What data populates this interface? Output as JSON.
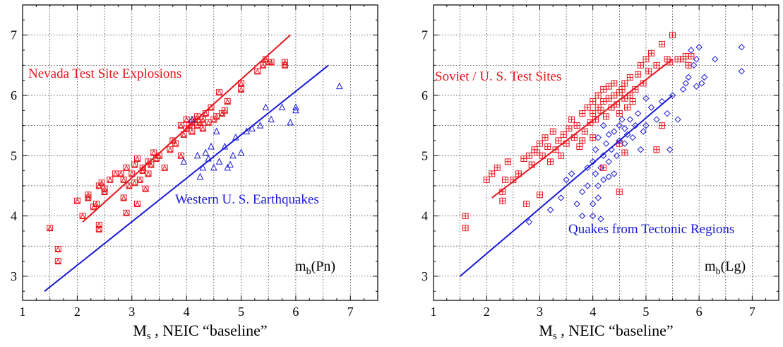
{
  "colors": {
    "red": "#e8141c",
    "blue": "#1a1ad8",
    "grid": "#000000"
  },
  "chart_data": [
    {
      "type": "scatter",
      "title": "",
      "xlabel": "M_s , NEIC “baseline”",
      "xlabel_main": "M",
      "xlabel_sub": "s",
      "xlabel_rest": " , NEIC “baseline”",
      "ylabel": "",
      "xlim": [
        1,
        7.5
      ],
      "ylim": [
        2.6,
        7.5
      ],
      "xticks": [
        1,
        2,
        3,
        4,
        5,
        6,
        7
      ],
      "yticks": [
        3,
        4,
        5,
        6,
        7
      ],
      "grid": true,
      "corner_label": {
        "main": "m",
        "sub": "b",
        "rest": "(Pn)"
      },
      "series": [
        {
          "name": "Nevada Test Site Explosions",
          "color": "#e8141c",
          "marker": "square-triangle",
          "fit": [
            [
              2.1,
              3.9
            ],
            [
              5.9,
              7.0
            ]
          ],
          "points": [
            [
              1.5,
              3.8
            ],
            [
              1.65,
              3.45
            ],
            [
              1.65,
              3.25
            ],
            [
              2.0,
              4.25
            ],
            [
              2.1,
              4.0
            ],
            [
              2.2,
              4.3
            ],
            [
              2.2,
              4.35
            ],
            [
              2.3,
              4.15
            ],
            [
              2.35,
              4.2
            ],
            [
              2.4,
              3.85
            ],
            [
              2.4,
              3.78
            ],
            [
              2.4,
              4.5
            ],
            [
              2.45,
              4.55
            ],
            [
              2.5,
              4.4
            ],
            [
              2.5,
              4.45
            ],
            [
              2.6,
              4.6
            ],
            [
              2.7,
              4.7
            ],
            [
              2.8,
              4.7
            ],
            [
              2.85,
              4.3
            ],
            [
              2.85,
              4.6
            ],
            [
              2.9,
              4.8
            ],
            [
              2.9,
              4.05
            ],
            [
              2.95,
              4.5
            ],
            [
              3.0,
              4.7
            ],
            [
              3.05,
              4.55
            ],
            [
              3.05,
              4.85
            ],
            [
              3.1,
              4.2
            ],
            [
              3.1,
              4.95
            ],
            [
              3.15,
              4.6
            ],
            [
              3.2,
              4.75
            ],
            [
              3.2,
              4.8
            ],
            [
              3.25,
              4.45
            ],
            [
              3.3,
              4.7
            ],
            [
              3.3,
              4.9
            ],
            [
              3.35,
              4.85
            ],
            [
              3.4,
              5.05
            ],
            [
              3.45,
              4.95
            ],
            [
              3.5,
              5.0
            ],
            [
              3.6,
              4.8
            ],
            [
              3.7,
              5.1
            ],
            [
              3.75,
              5.25
            ],
            [
              3.8,
              5.2
            ],
            [
              3.9,
              5.0
            ],
            [
              3.9,
              5.5
            ],
            [
              3.95,
              5.35
            ],
            [
              4.0,
              5.45
            ],
            [
              4.0,
              5.6
            ],
            [
              4.05,
              5.5
            ],
            [
              4.1,
              5.55
            ],
            [
              4.1,
              5.4
            ],
            [
              4.15,
              5.6
            ],
            [
              4.2,
              5.5
            ],
            [
              4.2,
              5.65
            ],
            [
              4.25,
              5.55
            ],
            [
              4.3,
              5.6
            ],
            [
              4.3,
              5.45
            ],
            [
              4.35,
              5.7
            ],
            [
              4.4,
              5.55
            ],
            [
              4.45,
              5.8
            ],
            [
              4.5,
              5.6
            ],
            [
              4.55,
              5.65
            ],
            [
              4.6,
              6.05
            ],
            [
              4.65,
              5.7
            ],
            [
              4.7,
              5.75
            ],
            [
              4.75,
              5.9
            ],
            [
              5.0,
              6.2
            ],
            [
              5.0,
              6.1
            ],
            [
              5.3,
              6.4
            ],
            [
              5.4,
              6.5
            ],
            [
              5.45,
              6.6
            ],
            [
              5.5,
              6.55
            ],
            [
              5.55,
              6.55
            ],
            [
              5.8,
              6.5
            ],
            [
              5.8,
              6.55
            ]
          ]
        },
        {
          "name": "Western U. S. Earthquakes",
          "color": "#1a1ad8",
          "marker": "triangle",
          "fit": [
            [
              1.4,
              2.75
            ],
            [
              6.6,
              6.5
            ]
          ],
          "points": [
            [
              3.95,
              4.9
            ],
            [
              4.2,
              5.0
            ],
            [
              4.25,
              4.65
            ],
            [
              4.3,
              4.8
            ],
            [
              4.35,
              5.05
            ],
            [
              4.4,
              4.95
            ],
            [
              4.45,
              5.15
            ],
            [
              4.5,
              4.8
            ],
            [
              4.55,
              5.4
            ],
            [
              4.6,
              4.9
            ],
            [
              4.7,
              5.15
            ],
            [
              4.75,
              4.8
            ],
            [
              4.8,
              4.85
            ],
            [
              4.85,
              5.0
            ],
            [
              4.9,
              5.3
            ],
            [
              5.0,
              5.05
            ],
            [
              5.1,
              5.4
            ],
            [
              5.2,
              5.45
            ],
            [
              5.35,
              5.5
            ],
            [
              5.45,
              5.8
            ],
            [
              5.55,
              5.6
            ],
            [
              5.75,
              5.8
            ],
            [
              6.0,
              5.8
            ],
            [
              6.0,
              5.75
            ],
            [
              6.8,
              6.15
            ],
            [
              5.9,
              5.55
            ],
            [
              4.1,
              5.6
            ]
          ]
        }
      ]
    },
    {
      "type": "scatter",
      "title": "",
      "xlabel": "M_s , NEIC “baseline”",
      "xlabel_main": "M",
      "xlabel_sub": "s",
      "xlabel_rest": " , NEIC “baseline”",
      "ylabel": "",
      "xlim": [
        1,
        7.5
      ],
      "ylim": [
        2.6,
        7.5
      ],
      "xticks": [
        1,
        2,
        3,
        4,
        5,
        6,
        7
      ],
      "yticks": [
        3,
        4,
        5,
        6,
        7
      ],
      "grid": true,
      "corner_label": {
        "main": "m",
        "sub": "b",
        "rest": "(Lg)"
      },
      "series": [
        {
          "name": "Soviet / U. S. Test Sites",
          "color": "#e8141c",
          "marker": "square-plus",
          "fit": [
            [
              2.1,
              4.3
            ],
            [
              5.5,
              6.6
            ]
          ],
          "points": [
            [
              1.6,
              4.0
            ],
            [
              1.6,
              3.8
            ],
            [
              2.0,
              4.6
            ],
            [
              2.1,
              4.7
            ],
            [
              2.2,
              4.8
            ],
            [
              2.3,
              4.4
            ],
            [
              2.3,
              4.25
            ],
            [
              2.35,
              4.6
            ],
            [
              2.4,
              4.9
            ],
            [
              2.5,
              4.6
            ],
            [
              2.6,
              4.7
            ],
            [
              2.7,
              4.95
            ],
            [
              2.75,
              4.2
            ],
            [
              2.8,
              5.0
            ],
            [
              2.85,
              4.85
            ],
            [
              2.9,
              5.1
            ],
            [
              2.95,
              5.05
            ],
            [
              3.0,
              5.2
            ],
            [
              3.0,
              4.35
            ],
            [
              3.05,
              5.0
            ],
            [
              3.1,
              5.3
            ],
            [
              3.15,
              5.15
            ],
            [
              3.2,
              4.9
            ],
            [
              3.25,
              5.4
            ],
            [
              3.3,
              5.1
            ],
            [
              3.35,
              5.25
            ],
            [
              3.4,
              5.0
            ],
            [
              3.45,
              5.35
            ],
            [
              3.5,
              5.2
            ],
            [
              3.55,
              5.45
            ],
            [
              3.6,
              5.6
            ],
            [
              3.65,
              5.3
            ],
            [
              3.7,
              5.5
            ],
            [
              3.75,
              5.15
            ],
            [
              3.8,
              5.7
            ],
            [
              3.85,
              5.4
            ],
            [
              3.9,
              5.8
            ],
            [
              3.95,
              5.55
            ],
            [
              4.0,
              5.7
            ],
            [
              4.0,
              5.9
            ],
            [
              4.05,
              5.6
            ],
            [
              4.1,
              5.8
            ],
            [
              4.1,
              6.0
            ],
            [
              4.15,
              5.75
            ],
            [
              4.2,
              5.9
            ],
            [
              4.2,
              6.1
            ],
            [
              4.25,
              5.65
            ],
            [
              4.3,
              5.95
            ],
            [
              4.3,
              6.15
            ],
            [
              4.35,
              5.8
            ],
            [
              4.4,
              6.0
            ],
            [
              4.4,
              6.2
            ],
            [
              4.45,
              5.85
            ],
            [
              4.5,
              6.05
            ],
            [
              4.5,
              5.7
            ],
            [
              4.55,
              6.1
            ],
            [
              4.6,
              5.95
            ],
            [
              4.6,
              6.2
            ],
            [
              4.65,
              5.8
            ],
            [
              4.7,
              6.0
            ],
            [
              4.7,
              6.3
            ],
            [
              4.75,
              5.9
            ],
            [
              4.8,
              6.1
            ],
            [
              4.85,
              6.35
            ],
            [
              4.9,
              6.5
            ],
            [
              4.95,
              6.2
            ],
            [
              5.0,
              6.6
            ],
            [
              5.05,
              6.4
            ],
            [
              5.1,
              6.7
            ],
            [
              5.2,
              6.5
            ],
            [
              5.3,
              6.85
            ],
            [
              5.4,
              6.6
            ],
            [
              5.45,
              6.55
            ],
            [
              5.5,
              7.0
            ],
            [
              5.6,
              6.6
            ],
            [
              5.7,
              6.6
            ],
            [
              5.75,
              6.65
            ],
            [
              5.8,
              6.5
            ],
            [
              5.85,
              6.65
            ],
            [
              4.6,
              5.05
            ],
            [
              4.5,
              4.4
            ],
            [
              4.2,
              4.8
            ],
            [
              5.3,
              5.5
            ],
            [
              5.2,
              5.1
            ],
            [
              3.8,
              5.25
            ],
            [
              4.0,
              5.3
            ],
            [
              4.5,
              5.2
            ]
          ]
        },
        {
          "name": "Quakes from Tectonic Regions",
          "color": "#1a1ad8",
          "marker": "diamond",
          "fit": [
            [
              1.5,
              3.0
            ],
            [
              5.5,
              6.0
            ]
          ],
          "points": [
            [
              2.8,
              3.9
            ],
            [
              3.2,
              4.1
            ],
            [
              3.4,
              4.3
            ],
            [
              3.5,
              4.6
            ],
            [
              3.6,
              4.7
            ],
            [
              3.7,
              4.2
            ],
            [
              3.8,
              4.4
            ],
            [
              3.8,
              4.0
            ],
            [
              3.9,
              4.8
            ],
            [
              3.9,
              4.5
            ],
            [
              4.0,
              4.2
            ],
            [
              4.0,
              4.9
            ],
            [
              4.0,
              4.0
            ],
            [
              4.05,
              4.7
            ],
            [
              4.05,
              5.1
            ],
            [
              4.1,
              4.5
            ],
            [
              4.1,
              4.3
            ],
            [
              4.1,
              5.3
            ],
            [
              4.15,
              4.8
            ],
            [
              4.15,
              3.95
            ],
            [
              4.2,
              5.0
            ],
            [
              4.2,
              4.6
            ],
            [
              4.2,
              5.5
            ],
            [
              4.25,
              5.2
            ],
            [
              4.3,
              4.9
            ],
            [
              4.3,
              4.65
            ],
            [
              4.3,
              5.35
            ],
            [
              4.35,
              5.1
            ],
            [
              4.4,
              5.4
            ],
            [
              4.4,
              4.7
            ],
            [
              4.45,
              5.0
            ],
            [
              4.5,
              5.25
            ],
            [
              4.5,
              5.5
            ],
            [
              4.55,
              5.6
            ],
            [
              4.6,
              5.2
            ],
            [
              4.6,
              5.45
            ],
            [
              4.65,
              5.35
            ],
            [
              4.7,
              5.6
            ],
            [
              4.75,
              5.3
            ],
            [
              4.8,
              5.5
            ],
            [
              4.85,
              5.7
            ],
            [
              4.9,
              5.1
            ],
            [
              4.95,
              5.4
            ],
            [
              5.0,
              5.95
            ],
            [
              5.0,
              5.5
            ],
            [
              5.1,
              5.8
            ],
            [
              5.2,
              5.6
            ],
            [
              5.3,
              5.9
            ],
            [
              5.4,
              5.7
            ],
            [
              5.45,
              5.1
            ],
            [
              5.5,
              6.0
            ],
            [
              5.6,
              5.6
            ],
            [
              5.7,
              6.1
            ],
            [
              5.75,
              6.2
            ],
            [
              5.8,
              6.3
            ],
            [
              5.9,
              6.5
            ],
            [
              5.95,
              6.15
            ],
            [
              6.0,
              6.8
            ],
            [
              6.05,
              6.2
            ],
            [
              6.1,
              6.3
            ],
            [
              6.3,
              6.6
            ],
            [
              6.8,
              6.8
            ],
            [
              6.8,
              6.4
            ],
            [
              5.85,
              6.75
            ],
            [
              5.95,
              6.6
            ]
          ]
        }
      ]
    }
  ]
}
